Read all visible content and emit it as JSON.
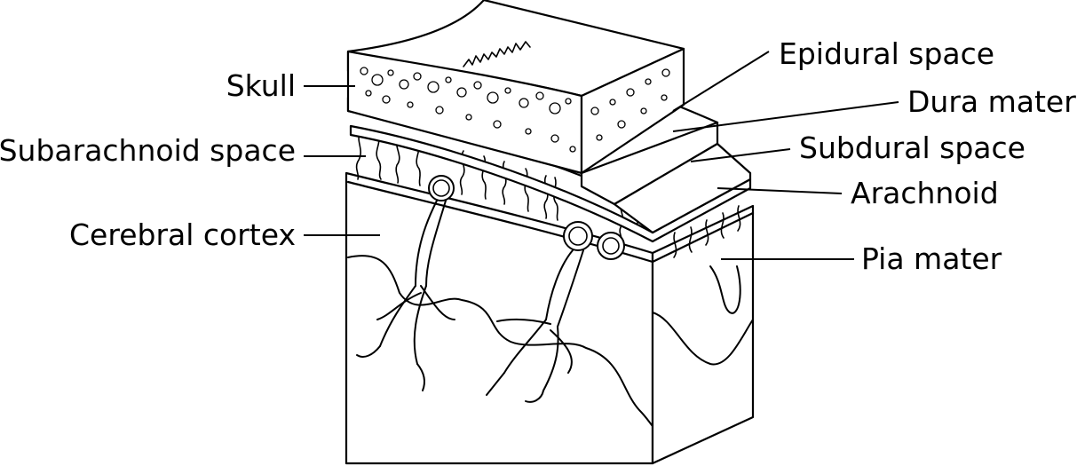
{
  "labels": {
    "skull": "Skull",
    "subarachnoid_space": "Subarachnoid space",
    "cerebral_cortex": "Cerebral cortex",
    "epidural_space": "Epidural space",
    "dura_mater": "Dura mater",
    "subdural_space": "Subdural space",
    "arachnoid": "Arachnoid",
    "pia_mater": "Pia mater"
  }
}
